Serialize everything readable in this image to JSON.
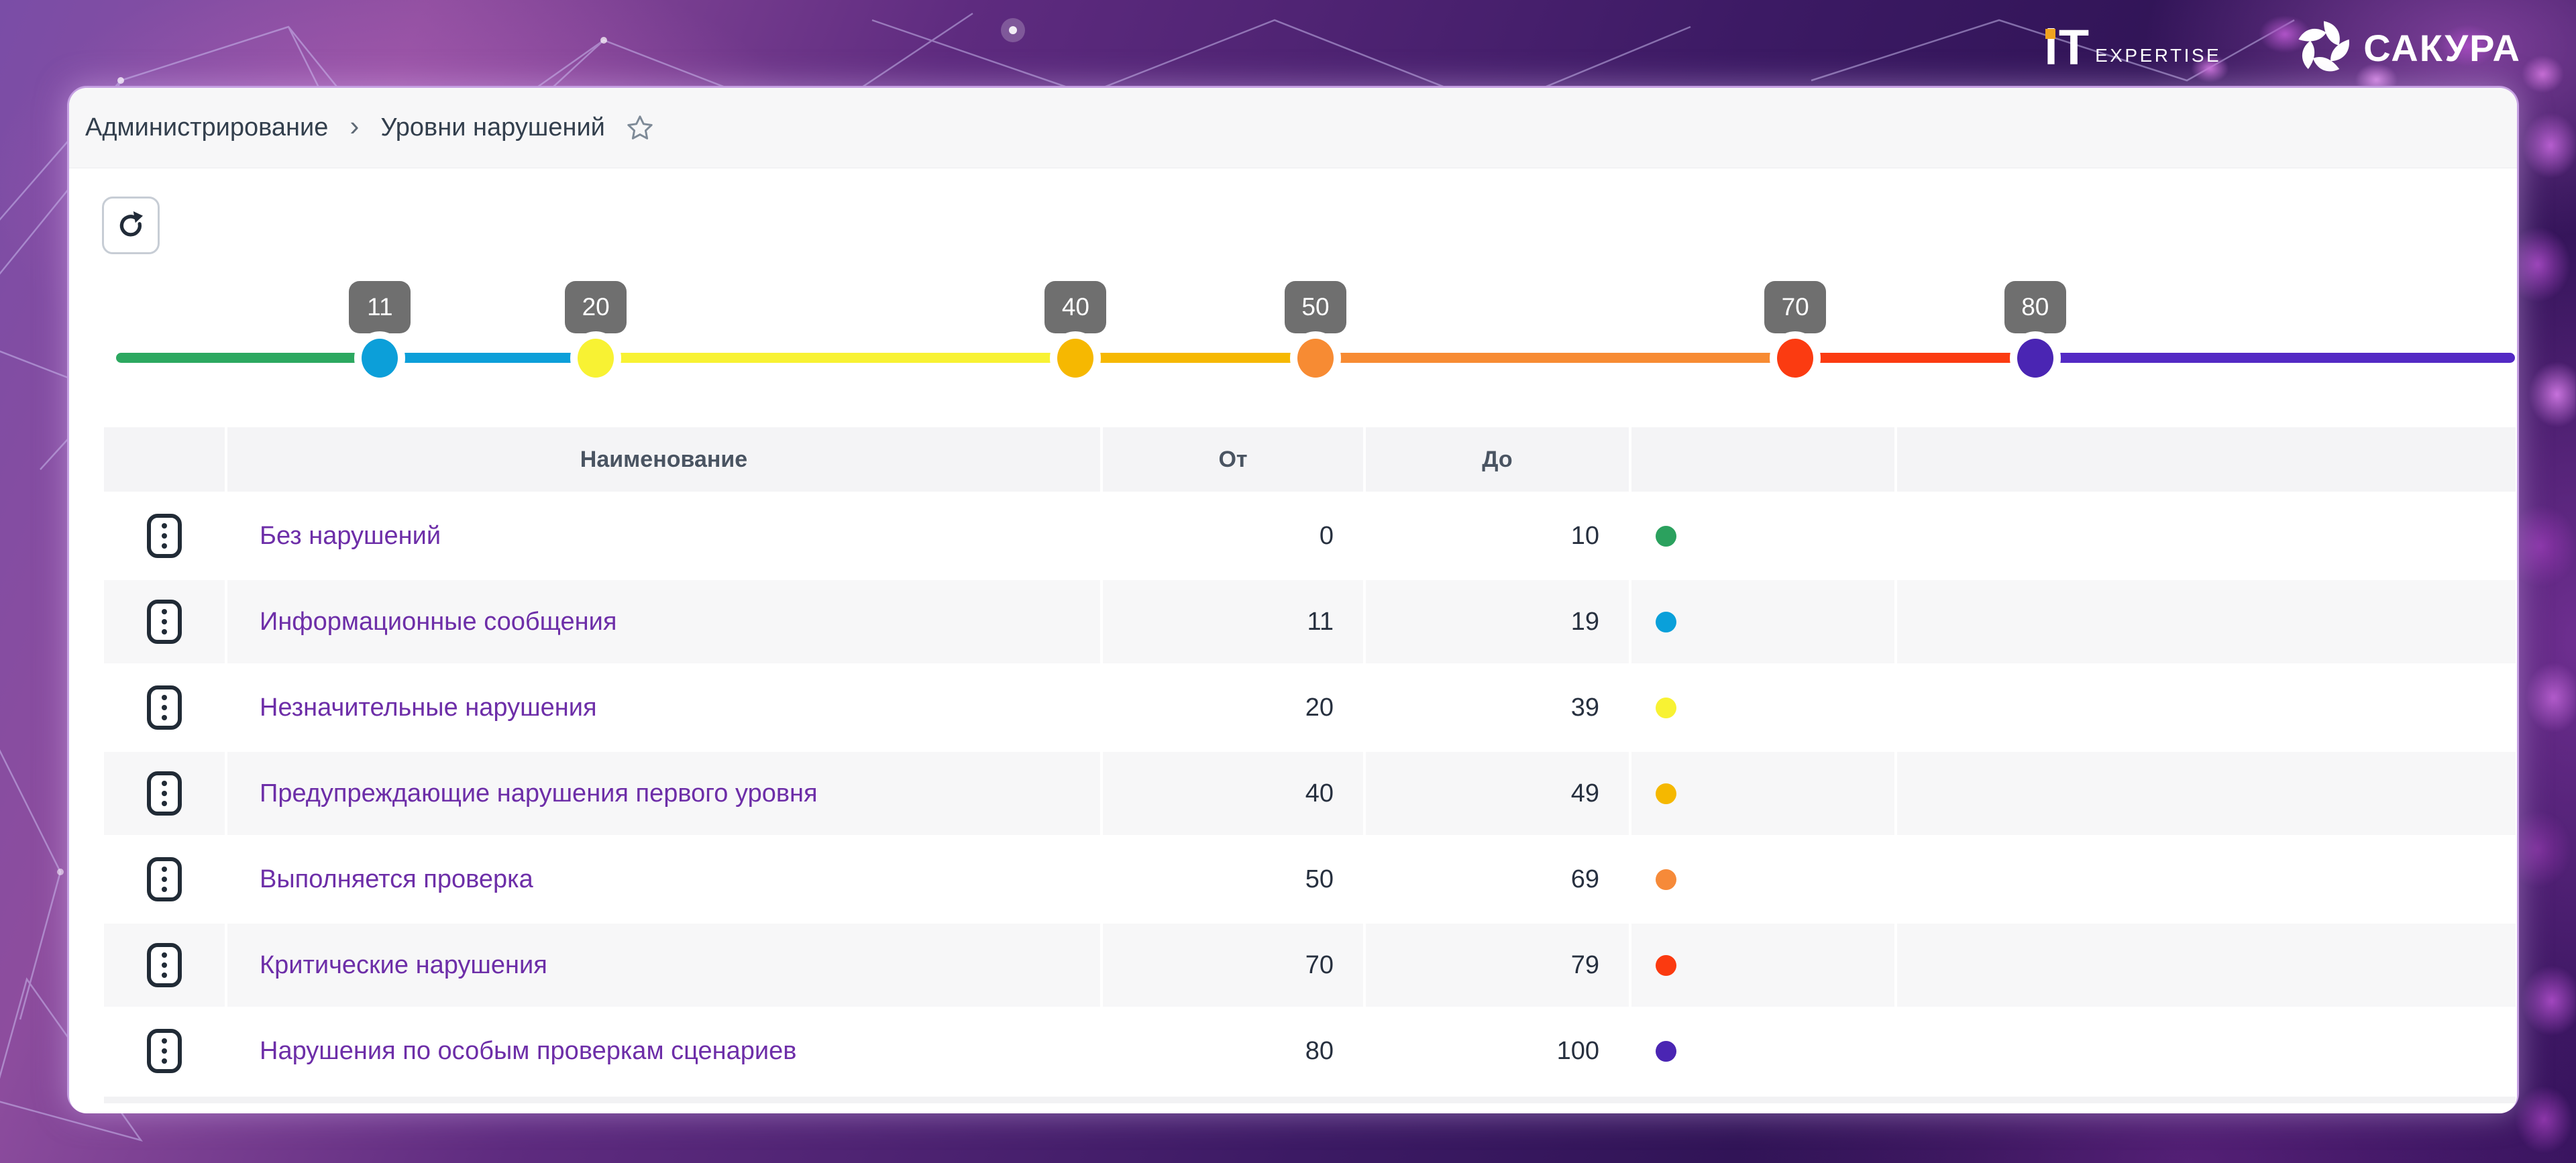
{
  "brand": {
    "it_logo": {
      "word": "iT",
      "sub": "EXPERTISE",
      "dot_color": "#f0a31f"
    },
    "sakura": {
      "name": "САКУРА"
    }
  },
  "breadcrumb": {
    "items": [
      "Администрирование",
      "Уровни нарушений"
    ],
    "separator": "›"
  },
  "slider": {
    "min": 0,
    "max": 100,
    "tooltip_bg": "#6f6f6f",
    "markers": [
      {
        "value": 11,
        "dot_color": "#0c9fd9"
      },
      {
        "value": 20,
        "dot_color": "#f8f233"
      },
      {
        "value": 40,
        "dot_color": "#f6b801"
      },
      {
        "value": 50,
        "dot_color": "#f78b33"
      },
      {
        "value": 70,
        "dot_color": "#fb3b11"
      },
      {
        "value": 80,
        "dot_color": "#4a25b3"
      }
    ],
    "segments": [
      {
        "from": 0,
        "to": 11,
        "color": "#2ca860"
      },
      {
        "from": 11,
        "to": 20,
        "color": "#0c9fd9"
      },
      {
        "from": 20,
        "to": 40,
        "color": "#f8f233"
      },
      {
        "from": 40,
        "to": 50,
        "color": "#f6b801"
      },
      {
        "from": 50,
        "to": 70,
        "color": "#f78b33"
      },
      {
        "from": 70,
        "to": 80,
        "color": "#fb3b11"
      },
      {
        "from": 80,
        "to": 100,
        "color": "#5329c4"
      }
    ]
  },
  "table": {
    "headers": {
      "name": "Наименование",
      "from": "От",
      "to": "До"
    },
    "rows": [
      {
        "name": "Без нарушений",
        "from": "0",
        "to": "10",
        "color": "#2ba15e"
      },
      {
        "name": "Информационные сообщения",
        "from": "11",
        "to": "19",
        "color": "#0aa0da"
      },
      {
        "name": "Незначительные нарушения",
        "from": "20",
        "to": "39",
        "color": "#f8f233"
      },
      {
        "name": "Предупреждающие нарушения первого уровня",
        "from": "40",
        "to": "49",
        "color": "#f5b800"
      },
      {
        "name": "Выполняется проверка",
        "from": "50",
        "to": "69",
        "color": "#f68a39"
      },
      {
        "name": "Критические нарушения",
        "from": "70",
        "to": "79",
        "color": "#fb3a10"
      },
      {
        "name": "Нарушения по особым проверкам сценариев",
        "from": "80",
        "to": "100",
        "color": "#4a25b3"
      }
    ]
  }
}
